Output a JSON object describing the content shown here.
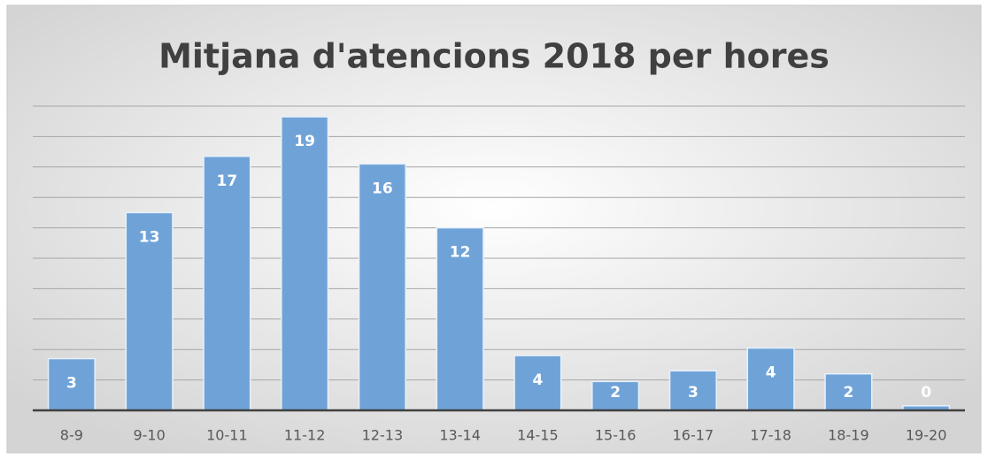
{
  "chart_data": {
    "type": "bar",
    "title": "Mitjana d'atencions 2018 per hores",
    "categories": [
      "8-9",
      "9-10",
      "10-11",
      "11-12",
      "12-13",
      "13-14",
      "14-15",
      "15-16",
      "16-17",
      "17-18",
      "18-19",
      "19-20"
    ],
    "values": [
      3.4,
      13,
      16.7,
      19.3,
      16.2,
      12,
      3.6,
      1.9,
      2.6,
      4.1,
      2.4,
      0.3
    ],
    "value_labels": [
      "3",
      "13",
      "17",
      "19",
      "16",
      "12",
      "4",
      "2",
      "3",
      "4",
      "2",
      "0"
    ],
    "color": "#6fa3d8",
    "ylim": [
      0,
      20
    ],
    "yticks": [
      0,
      2,
      4,
      6,
      8,
      10,
      12,
      14,
      16,
      18,
      20
    ],
    "grid": true
  }
}
